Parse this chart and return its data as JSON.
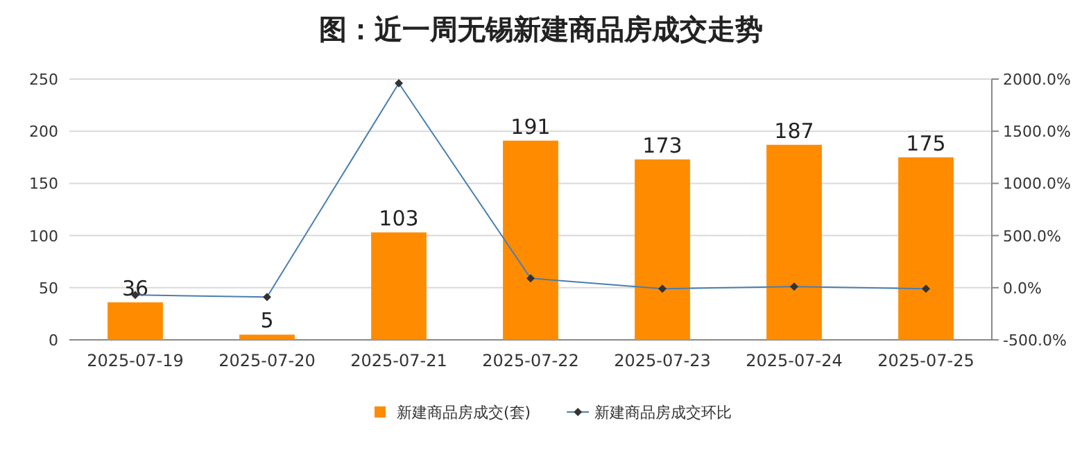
{
  "chart_data": {
    "type": "bar",
    "title": "图：近一周无锡新建商品房成交走势",
    "categories": [
      "2025-07-19",
      "2025-07-20",
      "2025-07-21",
      "2025-07-22",
      "2025-07-23",
      "2025-07-24",
      "2025-07-25"
    ],
    "series": [
      {
        "name": "新建商品房成交(套)",
        "color": "#ff8c00",
        "values": [
          36,
          5,
          103,
          191,
          173,
          187,
          175
        ],
        "value_labels": [
          "36",
          "5",
          "103",
          "191",
          "173",
          "187",
          "175"
        ]
      },
      {
        "name": "新建商品房成交环比",
        "type": "line",
        "axis": "y2",
        "color": "#4a7eb0",
        "marker": "diamond",
        "values": [
          -70,
          -90,
          1960,
          90,
          -10,
          10,
          -10
        ]
      }
    ],
    "ylim": [
      0,
      250
    ],
    "yticks": [
      0,
      50,
      100,
      150,
      200,
      250
    ],
    "y2lim": [
      -500,
      2000
    ],
    "y2ticks": [
      {
        "value": -500,
        "label": "-500.0%"
      },
      {
        "value": 0,
        "label": "0.0%"
      },
      {
        "value": 500,
        "label": "500.0%"
      },
      {
        "value": 1000,
        "label": "1000.0%"
      },
      {
        "value": 1500,
        "label": "1500.0%"
      },
      {
        "value": 2000,
        "label": "2000.0%"
      }
    ],
    "grid": "y",
    "legend": "bottom"
  }
}
